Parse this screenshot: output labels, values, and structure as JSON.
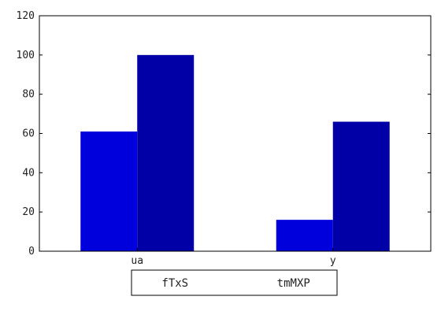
{
  "chart_data": {
    "type": "bar",
    "categories": [
      "ua",
      "y"
    ],
    "series": [
      {
        "name": "fTxS",
        "values": [
          61,
          16
        ],
        "color": "#0000dd"
      },
      {
        "name": "tmMXP",
        "values": [
          100,
          66
        ],
        "color": "#0000a6"
      }
    ],
    "ylim": [
      0,
      120
    ],
    "yticks": [
      0,
      20,
      40,
      60,
      80,
      100,
      120
    ],
    "title": "",
    "xlabel": "",
    "ylabel": "",
    "grid": false,
    "legend_position": "bottom-center"
  }
}
